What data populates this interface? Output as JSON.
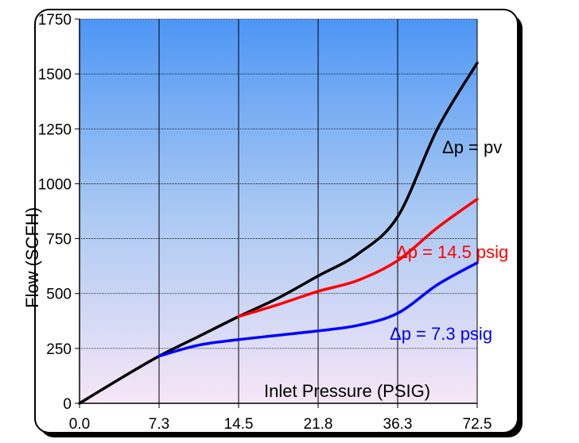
{
  "chart_data": {
    "type": "line",
    "xlabel": "Inlet Pressure (PSIG)",
    "ylabel": "Flow (SCFH)",
    "x_categories": [
      "0.0",
      "7.3",
      "14.5",
      "21.8",
      "36.3",
      "72.5"
    ],
    "y_ticks": [
      "0",
      "250",
      "500",
      "750",
      "1000",
      "1250",
      "1500",
      "1750"
    ],
    "ylim": [
      0,
      1750
    ],
    "grid": true,
    "series": [
      {
        "name": "Δp = pv",
        "color": "#000000",
        "points": [
          [
            0,
            0
          ],
          [
            0.5,
            110
          ],
          [
            1,
            215
          ],
          [
            1.5,
            305
          ],
          [
            2,
            395
          ],
          [
            2.5,
            480
          ],
          [
            3,
            580
          ],
          [
            3.5,
            680
          ],
          [
            4,
            850
          ],
          [
            4.5,
            1250
          ],
          [
            5,
            1550
          ]
        ]
      },
      {
        "name": "Δp = 14.5 psig",
        "color": "#ff0000",
        "points": [
          [
            2,
            395
          ],
          [
            2.5,
            450
          ],
          [
            3,
            510
          ],
          [
            3.5,
            560
          ],
          [
            4,
            650
          ],
          [
            4.5,
            800
          ],
          [
            5,
            930
          ]
        ]
      },
      {
        "name": "Δp = 7.3 psig",
        "color": "#0000ff",
        "points": [
          [
            1,
            215
          ],
          [
            1.5,
            265
          ],
          [
            2,
            290
          ],
          [
            2.5,
            310
          ],
          [
            3,
            330
          ],
          [
            3.5,
            355
          ],
          [
            4,
            410
          ],
          [
            4.5,
            540
          ],
          [
            5,
            640
          ]
        ]
      }
    ]
  },
  "annotations": {
    "pv": "Δp = pv",
    "p145": "Δp = 14.5 psig",
    "p73": "Δp = 7.3 psig"
  }
}
